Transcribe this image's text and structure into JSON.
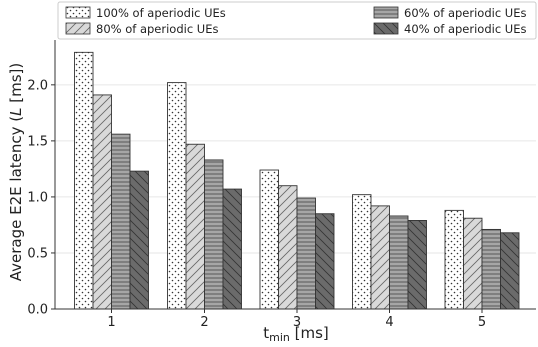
{
  "chart_data": {
    "type": "bar",
    "x_tick_labels": [
      "1",
      "2",
      "3",
      "4",
      "5"
    ],
    "xlabel": {
      "main": "t",
      "sub": "min",
      "unit": " [ms]"
    },
    "ylabel": {
      "prefix": "Average E2E latency (",
      "symbol": "L",
      "suffix": " [ms])"
    },
    "ylim": [
      0,
      2.4
    ],
    "y_ticks": [
      0.0,
      0.5,
      1.0,
      1.5,
      2.0
    ],
    "y_tick_labels": [
      "0.0",
      "0.5",
      "1.0",
      "1.5",
      "2.0"
    ],
    "grid": "horizontal",
    "legend_position": "top",
    "series": [
      {
        "name": "100% of aperiodic UEs",
        "fill": "#ffffff",
        "pattern": "dots",
        "values": [
          2.29,
          2.02,
          1.24,
          1.02,
          0.88
        ]
      },
      {
        "name": "80% of aperiodic UEs",
        "fill": "#d9d9d9",
        "pattern": "diagonal",
        "values": [
          1.91,
          1.47,
          1.1,
          0.92,
          0.81
        ]
      },
      {
        "name": "60% of aperiodic UEs",
        "fill": "#a6a6a6",
        "pattern": "horizontal",
        "values": [
          1.56,
          1.33,
          0.99,
          0.83,
          0.71
        ]
      },
      {
        "name": "40% of aperiodic UEs",
        "fill": "#6b6b6b",
        "pattern": "back-diagonal",
        "values": [
          1.23,
          1.07,
          0.85,
          0.79,
          0.68
        ]
      }
    ]
  }
}
